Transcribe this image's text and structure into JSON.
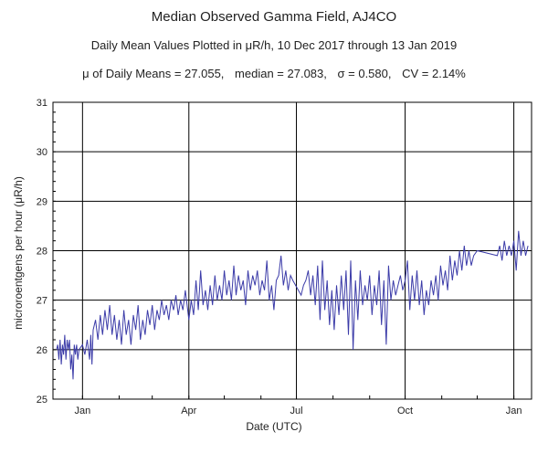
{
  "title": "Median Observed Gamma Field, AJ4CO",
  "subtitle": "Daily Mean Values Plotted in μR/h, 10 Dec 2017 through 13 Jan 2019",
  "stats": [
    "μ of Daily Means = 27.055,",
    "median = 27.083,",
    "σ = 0.580,",
    "CV = 2.14%"
  ],
  "colors": {
    "line": "#3b3ba8",
    "grid": "#000000",
    "axis": "#000000"
  },
  "chart_data": {
    "type": "line",
    "title": "Median Observed Gamma Field, AJ4CO",
    "xlabel": "Date (UTC)",
    "ylabel": "microroentgens per hour (μR/h)",
    "ylim": [
      25,
      31
    ],
    "yticks": [
      25,
      26,
      27,
      28,
      29,
      30,
      31
    ],
    "xlim": [
      "2017-12-07",
      "2019-01-16"
    ],
    "xticks": [
      {
        "label": "Jan",
        "date": "2018-01-01"
      },
      {
        "label": "Apr",
        "date": "2018-04-01"
      },
      {
        "label": "Jul",
        "date": "2018-07-01"
      },
      {
        "label": "Oct",
        "date": "2018-10-01"
      },
      {
        "label": "Jan",
        "date": "2019-01-01"
      }
    ],
    "grid": true,
    "series": [
      {
        "values": [
          [
            "2017-12-10",
            26.0
          ],
          [
            "2017-12-11",
            26.1
          ],
          [
            "2017-12-12",
            25.8
          ],
          [
            "2017-12-13",
            26.2
          ],
          [
            "2017-12-14",
            25.7
          ],
          [
            "2017-12-15",
            26.1
          ],
          [
            "2017-12-16",
            25.9
          ],
          [
            "2017-12-17",
            26.3
          ],
          [
            "2017-12-18",
            25.8
          ],
          [
            "2017-12-19",
            26.2
          ],
          [
            "2017-12-20",
            26.0
          ],
          [
            "2017-12-21",
            26.2
          ],
          [
            "2017-12-22",
            25.6
          ],
          [
            "2017-12-23",
            25.9
          ],
          [
            "2017-12-24",
            25.4
          ],
          [
            "2017-12-25",
            26.1
          ],
          [
            "2017-12-26",
            25.9
          ],
          [
            "2017-12-27",
            26.1
          ],
          [
            "2017-12-28",
            25.8
          ],
          [
            "2017-12-29",
            26.0
          ],
          [
            "2018-01-01",
            26.1
          ],
          [
            "2018-01-03",
            25.9
          ],
          [
            "2018-01-05",
            26.2
          ],
          [
            "2018-01-07",
            25.8
          ],
          [
            "2018-01-08",
            26.3
          ],
          [
            "2018-01-09",
            25.7
          ],
          [
            "2018-01-10",
            26.4
          ],
          [
            "2018-01-12",
            26.6
          ],
          [
            "2018-01-14",
            26.2
          ],
          [
            "2018-01-16",
            26.7
          ],
          [
            "2018-01-18",
            26.3
          ],
          [
            "2018-01-20",
            26.8
          ],
          [
            "2018-01-22",
            26.4
          ],
          [
            "2018-01-24",
            26.9
          ],
          [
            "2018-01-26",
            26.3
          ],
          [
            "2018-01-28",
            26.7
          ],
          [
            "2018-01-30",
            26.2
          ],
          [
            "2018-02-01",
            26.6
          ],
          [
            "2018-02-03",
            26.1
          ],
          [
            "2018-02-05",
            26.8
          ],
          [
            "2018-02-07",
            26.3
          ],
          [
            "2018-02-09",
            26.6
          ],
          [
            "2018-02-11",
            26.1
          ],
          [
            "2018-02-13",
            26.7
          ],
          [
            "2018-02-15",
            26.4
          ],
          [
            "2018-02-17",
            26.9
          ],
          [
            "2018-02-19",
            26.2
          ],
          [
            "2018-02-21",
            26.6
          ],
          [
            "2018-02-23",
            26.3
          ],
          [
            "2018-02-25",
            26.8
          ],
          [
            "2018-02-27",
            26.5
          ],
          [
            "2018-03-01",
            26.9
          ],
          [
            "2018-03-03",
            26.4
          ],
          [
            "2018-03-05",
            26.8
          ],
          [
            "2018-03-07",
            26.6
          ],
          [
            "2018-03-09",
            27.0
          ],
          [
            "2018-03-11",
            26.7
          ],
          [
            "2018-03-13",
            26.9
          ],
          [
            "2018-03-15",
            26.6
          ],
          [
            "2018-03-17",
            27.0
          ],
          [
            "2018-03-19",
            26.8
          ],
          [
            "2018-03-21",
            27.1
          ],
          [
            "2018-03-23",
            26.7
          ],
          [
            "2018-03-25",
            27.0
          ],
          [
            "2018-03-27",
            26.8
          ],
          [
            "2018-03-29",
            27.2
          ],
          [
            "2018-04-01",
            26.6
          ],
          [
            "2018-04-03",
            27.0
          ],
          [
            "2018-04-05",
            26.7
          ],
          [
            "2018-04-07",
            27.4
          ],
          [
            "2018-04-09",
            26.8
          ],
          [
            "2018-04-11",
            27.6
          ],
          [
            "2018-04-13",
            26.9
          ],
          [
            "2018-04-15",
            27.2
          ],
          [
            "2018-04-17",
            26.8
          ],
          [
            "2018-04-19",
            27.3
          ],
          [
            "2018-04-21",
            26.9
          ],
          [
            "2018-04-23",
            27.5
          ],
          [
            "2018-04-25",
            27.0
          ],
          [
            "2018-04-27",
            27.3
          ],
          [
            "2018-04-29",
            27.0
          ],
          [
            "2018-05-01",
            27.6
          ],
          [
            "2018-05-03",
            27.1
          ],
          [
            "2018-05-05",
            27.4
          ],
          [
            "2018-05-07",
            27.0
          ],
          [
            "2018-05-09",
            27.7
          ],
          [
            "2018-05-11",
            27.1
          ],
          [
            "2018-05-13",
            27.5
          ],
          [
            "2018-05-15",
            27.2
          ],
          [
            "2018-05-17",
            27.4
          ],
          [
            "2018-05-19",
            26.9
          ],
          [
            "2018-05-21",
            27.6
          ],
          [
            "2018-05-23",
            27.2
          ],
          [
            "2018-05-25",
            27.5
          ],
          [
            "2018-05-27",
            27.3
          ],
          [
            "2018-05-29",
            27.6
          ],
          [
            "2018-05-31",
            27.1
          ],
          [
            "2018-06-02",
            27.4
          ],
          [
            "2018-06-04",
            27.2
          ],
          [
            "2018-06-06",
            27.8
          ],
          [
            "2018-06-08",
            27.0
          ],
          [
            "2018-06-10",
            27.3
          ],
          [
            "2018-06-12",
            26.8
          ],
          [
            "2018-06-14",
            27.4
          ],
          [
            "2018-06-16",
            27.5
          ],
          [
            "2018-06-18",
            27.9
          ],
          [
            "2018-06-20",
            27.3
          ],
          [
            "2018-06-22",
            27.6
          ],
          [
            "2018-06-24",
            27.2
          ],
          [
            "2018-06-26",
            27.5
          ],
          [
            "2018-06-28",
            27.4
          ],
          [
            "2018-07-05",
            27.1
          ],
          [
            "2018-07-07",
            27.3
          ],
          [
            "2018-07-09",
            27.4
          ],
          [
            "2018-07-11",
            27.6
          ],
          [
            "2018-07-13",
            27.1
          ],
          [
            "2018-07-15",
            27.5
          ],
          [
            "2018-07-17",
            26.9
          ],
          [
            "2018-07-19",
            27.7
          ],
          [
            "2018-07-21",
            26.6
          ],
          [
            "2018-07-23",
            27.8
          ],
          [
            "2018-07-25",
            26.8
          ],
          [
            "2018-07-27",
            27.4
          ],
          [
            "2018-07-29",
            26.5
          ],
          [
            "2018-07-31",
            27.2
          ],
          [
            "2018-08-02",
            26.4
          ],
          [
            "2018-08-04",
            27.3
          ],
          [
            "2018-08-06",
            26.7
          ],
          [
            "2018-08-08",
            27.5
          ],
          [
            "2018-08-10",
            26.8
          ],
          [
            "2018-08-12",
            27.6
          ],
          [
            "2018-08-14",
            26.3
          ],
          [
            "2018-08-16",
            27.8
          ],
          [
            "2018-08-18",
            26.0
          ],
          [
            "2018-08-20",
            27.4
          ],
          [
            "2018-08-22",
            26.6
          ],
          [
            "2018-08-24",
            27.6
          ],
          [
            "2018-08-26",
            26.9
          ],
          [
            "2018-08-28",
            27.3
          ],
          [
            "2018-08-30",
            27.0
          ],
          [
            "2018-09-01",
            27.5
          ],
          [
            "2018-09-03",
            26.7
          ],
          [
            "2018-09-05",
            27.3
          ],
          [
            "2018-09-07",
            26.9
          ],
          [
            "2018-09-09",
            27.6
          ],
          [
            "2018-09-11",
            26.5
          ],
          [
            "2018-09-13",
            27.4
          ],
          [
            "2018-09-15",
            26.1
          ],
          [
            "2018-09-17",
            27.7
          ],
          [
            "2018-09-19",
            27.0
          ],
          [
            "2018-09-21",
            27.4
          ],
          [
            "2018-09-23",
            27.1
          ],
          [
            "2018-09-25",
            27.3
          ],
          [
            "2018-09-27",
            27.5
          ],
          [
            "2018-09-29",
            27.2
          ],
          [
            "2018-10-01",
            27.4
          ],
          [
            "2018-10-03",
            27.8
          ],
          [
            "2018-10-05",
            26.8
          ],
          [
            "2018-10-07",
            27.5
          ],
          [
            "2018-10-09",
            27.0
          ],
          [
            "2018-10-11",
            27.6
          ],
          [
            "2018-10-13",
            26.9
          ],
          [
            "2018-10-15",
            27.4
          ],
          [
            "2018-10-17",
            26.7
          ],
          [
            "2018-10-19",
            27.2
          ],
          [
            "2018-10-21",
            26.9
          ],
          [
            "2018-10-23",
            27.4
          ],
          [
            "2018-10-25",
            27.1
          ],
          [
            "2018-10-27",
            27.5
          ],
          [
            "2018-10-29",
            27.0
          ],
          [
            "2018-10-31",
            27.7
          ],
          [
            "2018-11-02",
            27.3
          ],
          [
            "2018-11-04",
            27.6
          ],
          [
            "2018-11-06",
            27.2
          ],
          [
            "2018-11-08",
            27.9
          ],
          [
            "2018-11-10",
            27.4
          ],
          [
            "2018-11-12",
            27.8
          ],
          [
            "2018-11-14",
            27.5
          ],
          [
            "2018-11-16",
            28.0
          ],
          [
            "2018-11-18",
            27.6
          ],
          [
            "2018-11-20",
            28.1
          ],
          [
            "2018-11-22",
            27.7
          ],
          [
            "2018-11-24",
            28.0
          ],
          [
            "2018-11-26",
            27.7
          ],
          [
            "2018-11-28",
            27.9
          ],
          [
            "2018-12-01",
            28.0
          ],
          [
            "2018-12-18",
            27.9
          ],
          [
            "2018-12-20",
            28.1
          ],
          [
            "2018-12-22",
            27.8
          ],
          [
            "2018-12-24",
            28.2
          ],
          [
            "2018-12-26",
            27.9
          ],
          [
            "2018-12-28",
            28.1
          ],
          [
            "2018-12-30",
            27.9
          ],
          [
            "2019-01-01",
            28.2
          ],
          [
            "2019-01-03",
            27.6
          ],
          [
            "2019-01-05",
            28.4
          ],
          [
            "2019-01-07",
            27.9
          ],
          [
            "2019-01-09",
            28.2
          ],
          [
            "2019-01-11",
            27.9
          ],
          [
            "2019-01-13",
            28.1
          ]
        ]
      }
    ]
  }
}
